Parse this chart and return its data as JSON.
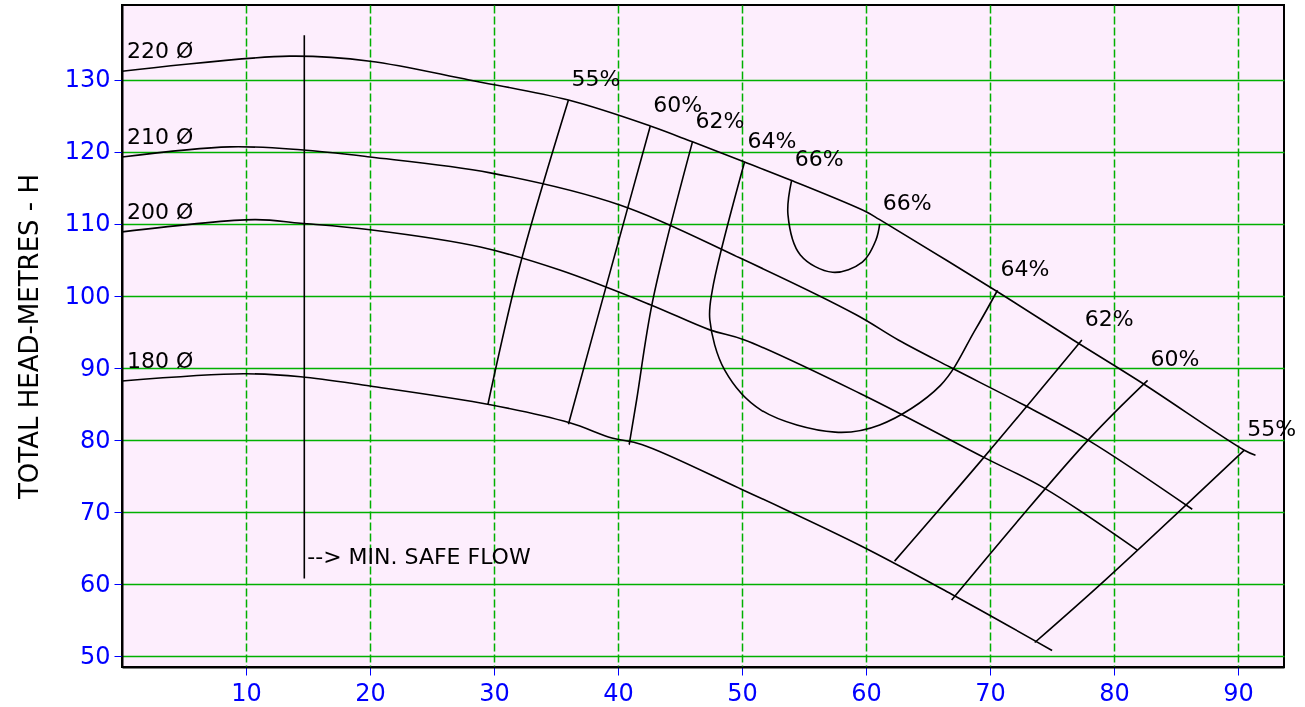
{
  "chart_data": {
    "type": "line",
    "ylabel": "TOTAL HEAD-METRES - H",
    "xlim": [
      0,
      93.7
    ],
    "ylim": [
      48.5,
      140.4
    ],
    "xticks": [
      10,
      20,
      30,
      40,
      50,
      60,
      70,
      80,
      90
    ],
    "yticks": [
      50,
      60,
      70,
      80,
      90,
      100,
      110,
      120,
      130
    ],
    "grid": true,
    "series": [
      {
        "name": "220 Ø",
        "color": "#000000",
        "x": [
          0,
          13.5,
          20,
          28,
          36,
          42.6,
          46,
          50.2,
          53.9,
          60,
          61.1,
          70.4,
          76.7,
          82.1,
          90.5,
          91.4
        ],
        "values": [
          131.2,
          133.3,
          132.6,
          130,
          127.2,
          123.6,
          121.4,
          118.6,
          116.1,
          111.7,
          110.6,
          100.8,
          93.9,
          88.1,
          78.6,
          77.9
        ]
      },
      {
        "name": "210 Ø",
        "color": "#000000",
        "x": [
          0,
          8.7,
          14.4,
          20,
          29.7,
          40.2,
          49.8,
          59.2,
          62.6,
          66.8,
          72.7,
          77.9,
          86.3
        ],
        "values": [
          119.3,
          120.7,
          120.3,
          119.3,
          117.1,
          112.6,
          105.3,
          97.4,
          93.9,
          90.1,
          84.9,
          80,
          70.4
        ]
      },
      {
        "name": "200 Ø",
        "color": "#000000",
        "x": [
          0,
          10.7,
          14.4,
          20,
          28.9,
          35.3,
          42.6,
          47.4,
          50.2,
          59.6,
          69.5,
          74.4,
          81.9
        ],
        "values": [
          108.9,
          110.6,
          110.1,
          109.2,
          106.8,
          103.6,
          98.8,
          95.3,
          93.9,
          86.4,
          77.6,
          73.3,
          64.7
        ]
      },
      {
        "name": "180 Ø",
        "color": "#000000",
        "x": [
          0,
          9.8,
          14.4,
          20,
          29.7,
          36.1,
          39.5,
          41.9,
          49.8,
          59.6,
          66.9,
          75
        ],
        "values": [
          88.2,
          89.2,
          88.8,
          87.5,
          84.9,
          82.4,
          80.3,
          79.4,
          73.3,
          65.3,
          58.6,
          50.8
        ]
      },
      {
        "color": "#000000",
        "x": [
          36,
          32.1,
          29.5
        ],
        "values": [
          127.2,
          104.3,
          84.9
        ]
      },
      {
        "color": "#000000",
        "x": [
          42.6,
          39.4,
          36
        ],
        "values": [
          123.6,
          103.6,
          82.2
        ]
      },
      {
        "color": "#000000",
        "x": [
          46,
          42.8,
          41.5,
          40.9
        ],
        "values": [
          121.4,
          99.4,
          85.6,
          79.4
        ]
      },
      {
        "color": "#000000",
        "x": [
          50.2,
          47.6,
          47.4,
          48.6,
          51.5,
          57.5,
          61.1,
          66,
          68.8,
          70.6
        ],
        "values": [
          118.6,
          100.8,
          96.7,
          89.7,
          84.2,
          81.1,
          82.1,
          87.6,
          95.3,
          100.8
        ]
      },
      {
        "color": "#000000",
        "x": [
          54,
          53.7,
          54.7,
          57.3,
          59.7,
          60.8,
          61.1
        ],
        "values": [
          116.1,
          111.3,
          105.7,
          103.3,
          104.7,
          107.8,
          110
        ]
      },
      {
        "color": "#000000",
        "x": [
          77.4,
          69.5,
          62.3
        ],
        "values": [
          93.9,
          77.6,
          63.2
        ]
      },
      {
        "color": "#000000",
        "x": [
          82.7,
          77.9,
          66.9
        ],
        "values": [
          88.3,
          80,
          57.8
        ]
      },
      {
        "color": "#000000",
        "x": [
          90.5,
          79.3,
          73.6
        ],
        "values": [
          78.6,
          60.6,
          51.9
        ]
      },
      {
        "color": "#000000",
        "x": [
          14.7,
          14.7
        ],
        "values": [
          136.2,
          60.8
        ]
      }
    ],
    "annotations": [
      {
        "text": "55%",
        "x": 36,
        "y": 127.2
      },
      {
        "text": "60%",
        "x": 42.6,
        "y": 123.6
      },
      {
        "text": "62%",
        "x": 46,
        "y": 121.4
      },
      {
        "text": "64%",
        "x": 50.2,
        "y": 118.6
      },
      {
        "text": "66%",
        "x": 54,
        "y": 116.1
      },
      {
        "text": "66%",
        "x": 61.1,
        "y": 110
      },
      {
        "text": "64%",
        "x": 70.6,
        "y": 100.8
      },
      {
        "text": "62%",
        "x": 77.4,
        "y": 93.9
      },
      {
        "text": "60%",
        "x": 82.7,
        "y": 88.3
      },
      {
        "text": "55%",
        "x": 90.5,
        "y": 78.6
      },
      {
        "text": "--> MIN. SAFE FLOW",
        "x": 14.7,
        "y": 60.8
      }
    ]
  }
}
